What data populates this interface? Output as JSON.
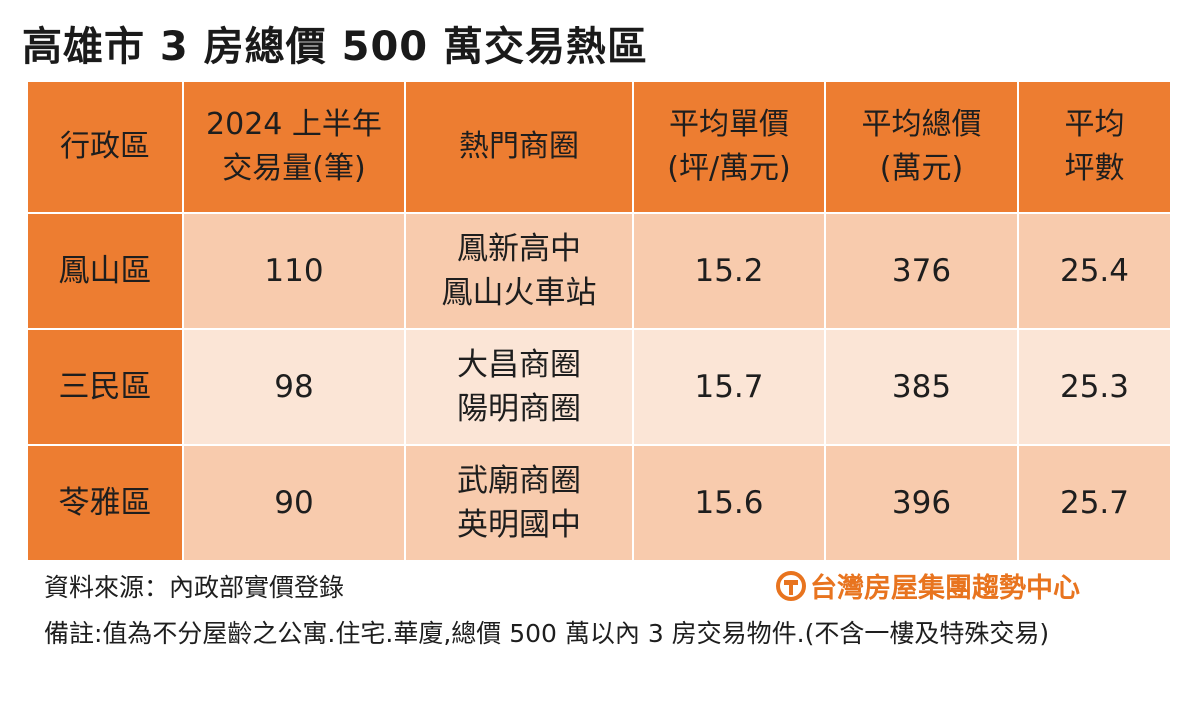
{
  "title": "高雄市 3 房總價 500 萬交易熱區",
  "table": {
    "headers": [
      [
        "行政區"
      ],
      [
        "2024 上半年",
        "交易量(筆)"
      ],
      [
        "熱門商圈"
      ],
      [
        "平均單價",
        "(坪/萬元)"
      ],
      [
        "平均總價",
        "(萬元)"
      ],
      [
        "平均",
        "坪數"
      ]
    ],
    "rows": [
      {
        "district": "鳳山區",
        "volume": "110",
        "areas": [
          "鳳新高中",
          "鳳山火車站"
        ],
        "unit_price": "15.2",
        "total_price": "376",
        "ping": "25.4"
      },
      {
        "district": "三民區",
        "volume": "98",
        "areas": [
          "大昌商圈",
          "陽明商圈"
        ],
        "unit_price": "15.7",
        "total_price": "385",
        "ping": "25.3"
      },
      {
        "district": "苓雅區",
        "volume": "90",
        "areas": [
          "武廟商圈",
          "英明國中"
        ],
        "unit_price": "15.6",
        "total_price": "396",
        "ping": "25.7"
      }
    ]
  },
  "source": "資料來源：內政部實價登錄",
  "note": "備註:值為不分屋齡之公寓.住宅.華廈,總價 500 萬以內 3 房交易物件.(不含一樓及特殊交易)",
  "logo": {
    "text": "台灣房屋集團趨勢中心",
    "icon": "taiwan-realty-logo-icon"
  },
  "colors": {
    "header": "#ed7d31",
    "row_dark": "#f8cbad",
    "row_light": "#fbe5d6",
    "logo": "#e8741f"
  }
}
